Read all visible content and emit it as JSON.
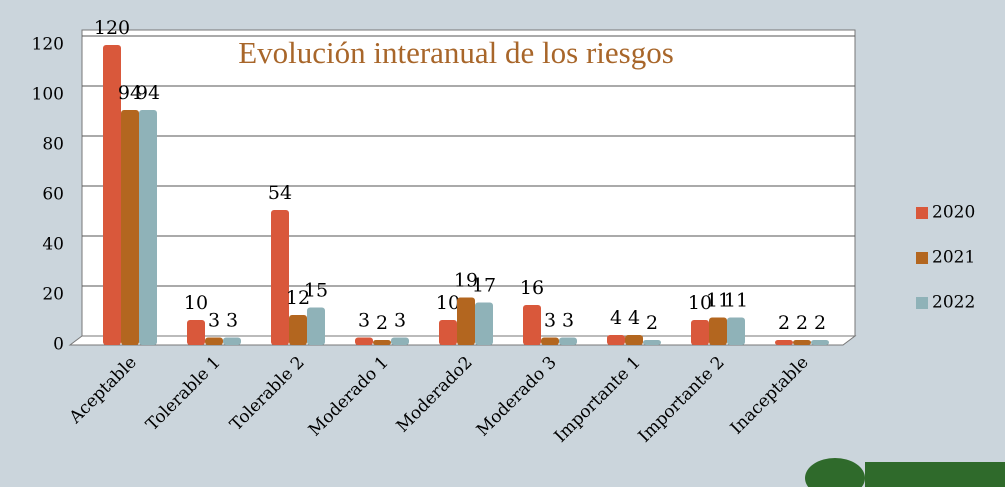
{
  "chart_data": {
    "type": "bar",
    "title": "Evolución interanual de los riesgos",
    "categories": [
      "Aceptable",
      "Tolerable 1",
      "Tolerable 2",
      "Moderado 1",
      "Moderado2",
      "Moderado 3",
      "Importante 1",
      "Importante 2",
      "Inaceptable"
    ],
    "series": [
      {
        "name": "2020",
        "color": "#d9583b",
        "values": [
          120,
          10,
          54,
          3,
          10,
          16,
          4,
          10,
          2
        ]
      },
      {
        "name": "2021",
        "color": "#b3661f",
        "values": [
          94,
          3,
          12,
          2,
          19,
          3,
          4,
          11,
          2
        ]
      },
      {
        "name": "2022",
        "color": "#8fb2b8",
        "values": [
          94,
          3,
          15,
          3,
          17,
          3,
          2,
          11,
          2
        ]
      }
    ],
    "ylim": [
      0,
      120
    ],
    "yticks": [
      0,
      20,
      40,
      60,
      80,
      100,
      120
    ],
    "grid": true,
    "legend": "right"
  }
}
